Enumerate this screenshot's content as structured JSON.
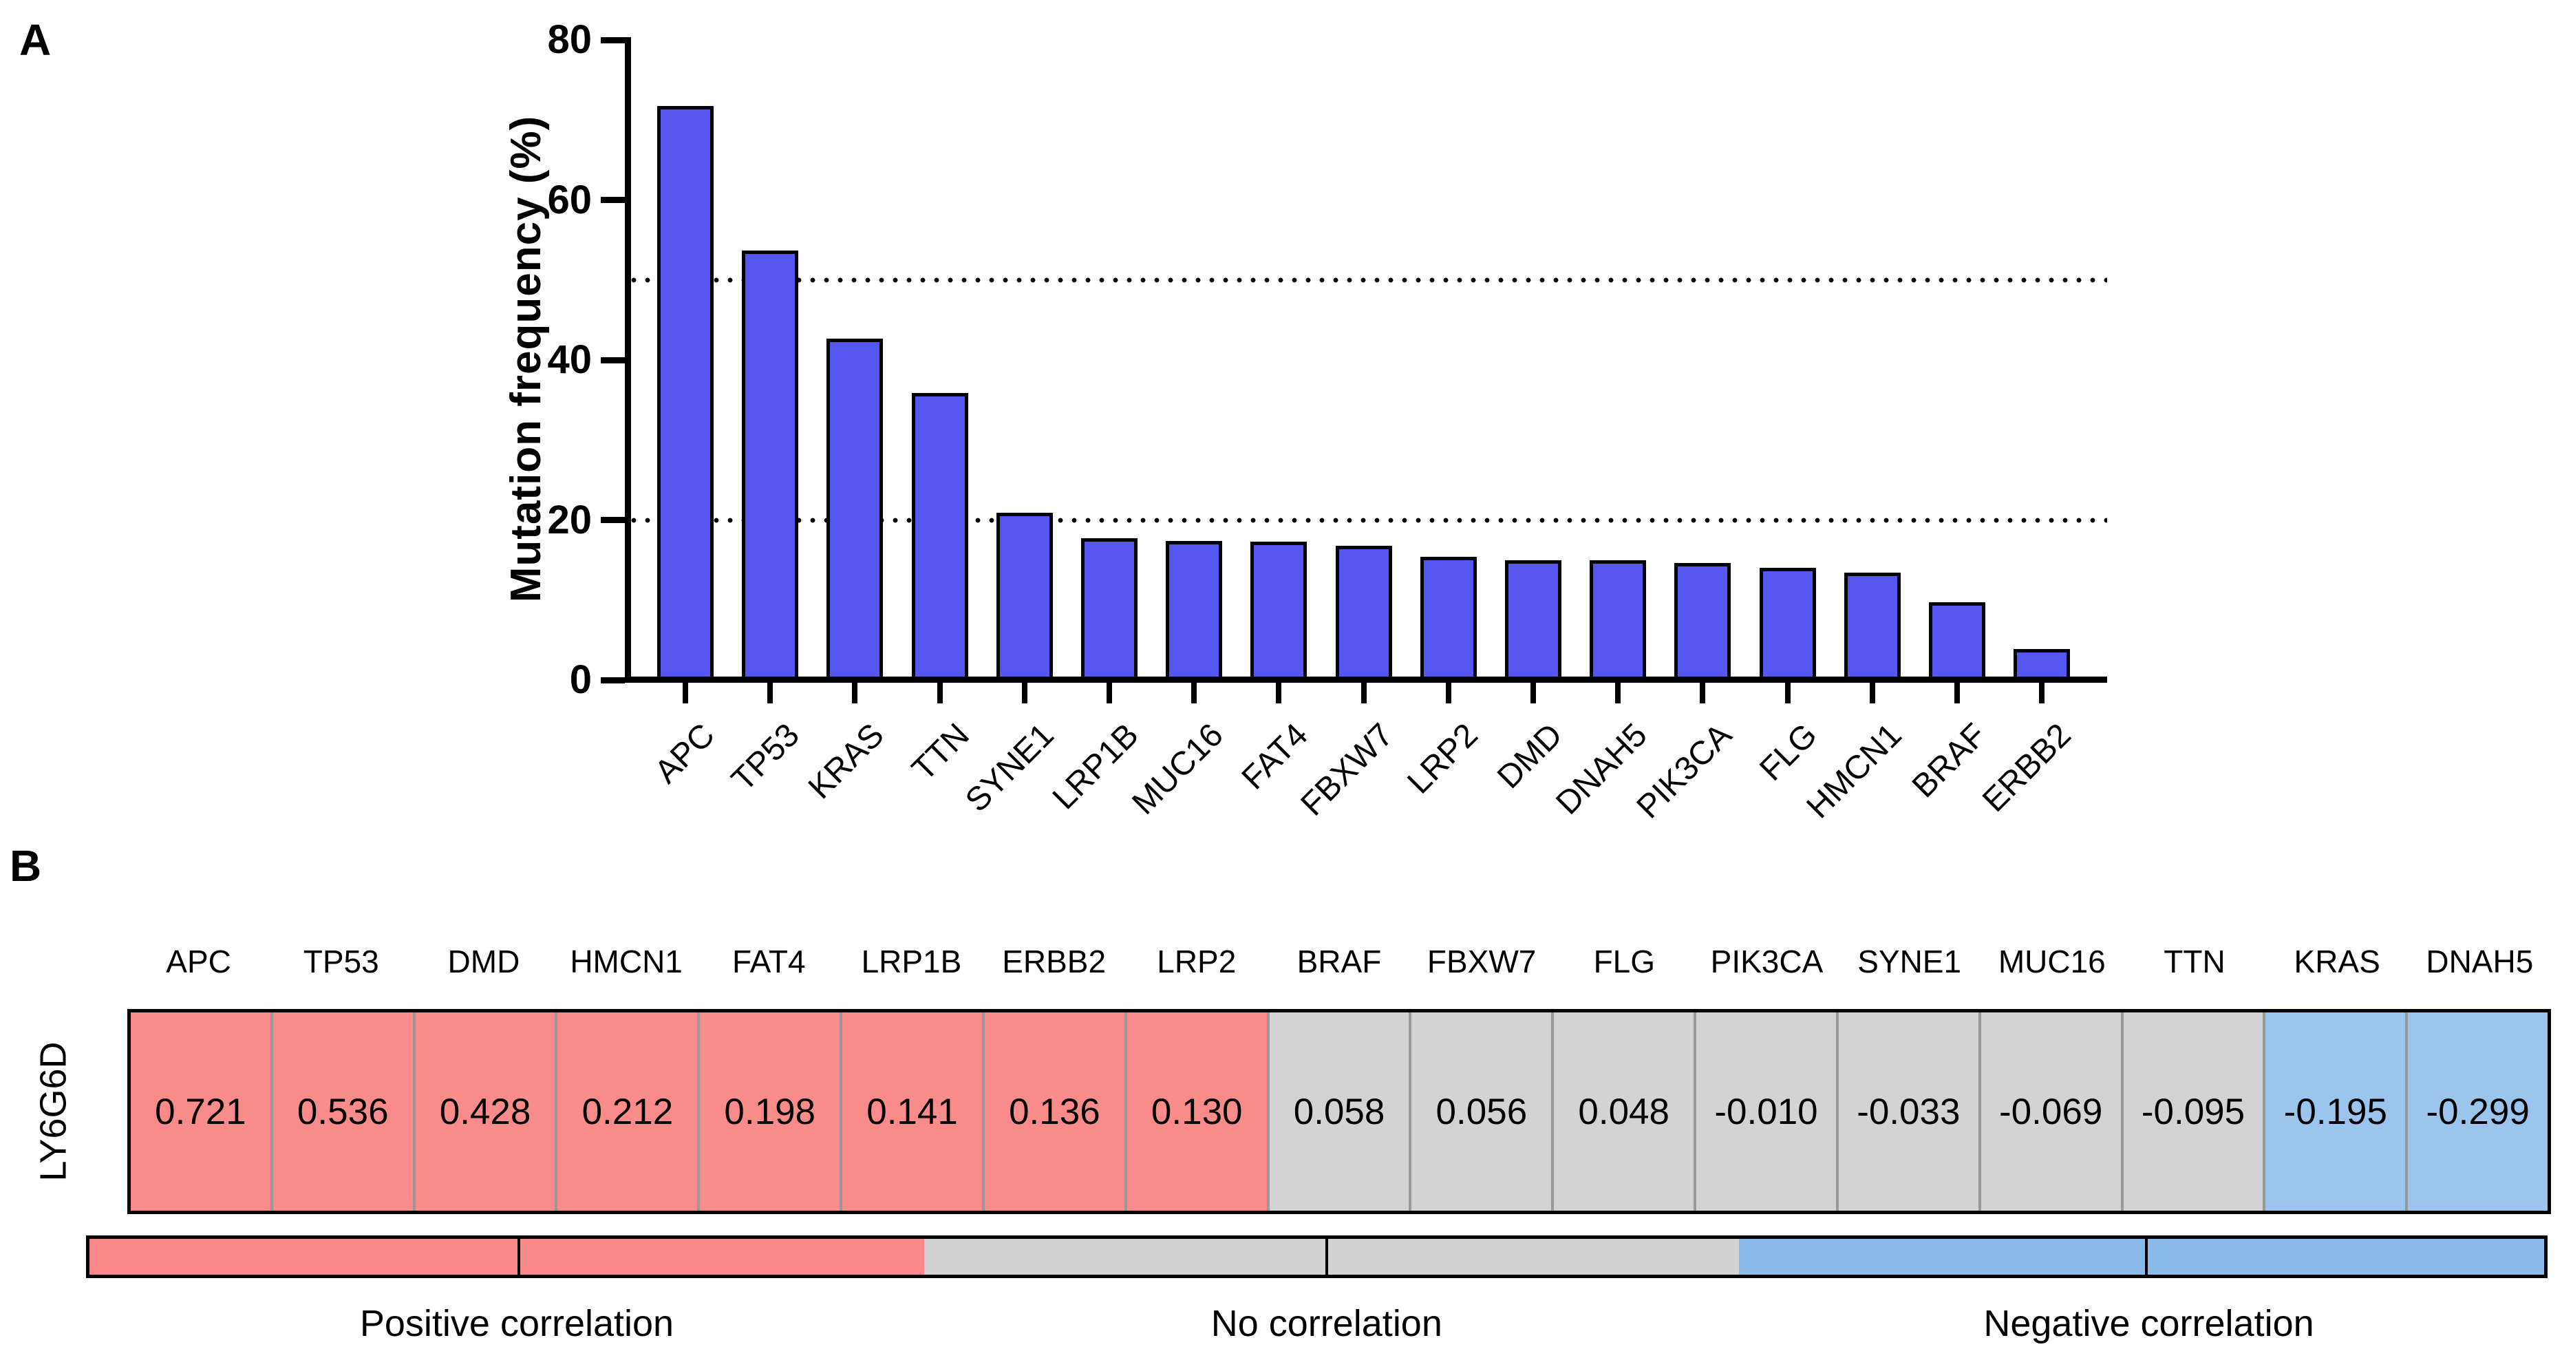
{
  "panels": {
    "a": {
      "label": "A",
      "chart_data": {
        "type": "bar",
        "ylabel": "Mutation frequency (%)",
        "xlabel": "",
        "ylim": [
          0,
          80
        ],
        "yticks": [
          0,
          20,
          40,
          60,
          80
        ],
        "reference_lines_dotted": [
          20,
          50
        ],
        "grid": "off",
        "legend": "none",
        "bar_color": "#5555f0",
        "bar_border_color": "#000000",
        "categories": [
          "APC",
          "TP53",
          "KRAS",
          "TTN",
          "SYNE1",
          "LRP1B",
          "MUC16",
          "FAT4",
          "FBXW7",
          "LRP2",
          "DMD",
          "DNAH5",
          "PIK3CA",
          "FLG",
          "HMCN1",
          "BRAF",
          "ERBB2"
        ],
        "values": [
          71.7,
          53.7,
          42.7,
          35.9,
          20.9,
          17.7,
          17.4,
          17.3,
          16.8,
          15.4,
          15.0,
          15.0,
          14.6,
          14.0,
          13.4,
          9.7,
          3.9
        ]
      }
    },
    "b": {
      "label": "B",
      "row_label": "LY6G6D",
      "chart_data": {
        "type": "heatmap",
        "row": "LY6G6D",
        "columns": [
          "APC",
          "TP53",
          "DMD",
          "HMCN1",
          "FAT4",
          "LRP1B",
          "ERBB2",
          "LRP2",
          "BRAF",
          "FBXW7",
          "FLG",
          "PIK3CA",
          "SYNE1",
          "MUC16",
          "TTN",
          "KRAS",
          "DNAH5"
        ],
        "values": [
          "0.721",
          "0.536",
          "0.428",
          "0.212",
          "0.198",
          "0.141",
          "0.136",
          "0.130",
          "0.058",
          "0.056",
          "0.048",
          "-0.010",
          "-0.033",
          "-0.069",
          "-0.095",
          "-0.195",
          "-0.299"
        ],
        "groups": [
          "positive",
          "positive",
          "positive",
          "positive",
          "positive",
          "positive",
          "positive",
          "positive",
          "none",
          "none",
          "none",
          "none",
          "none",
          "none",
          "none",
          "negative",
          "negative"
        ],
        "group_colors": {
          "positive": "#f98b8b",
          "none": "#d3d3d3",
          "negative": "#9cc5ee"
        }
      },
      "legend": {
        "segments": [
          {
            "label": "Positive correlation",
            "color": "#f98888",
            "width_pct": 34.0
          },
          {
            "label": "No correlation",
            "color": "#d2d2d2",
            "width_pct": 33.2
          },
          {
            "label": "Negative correlation",
            "color": "#8abae8",
            "width_pct": 32.8
          }
        ],
        "tick_positions_pct": [
          17.5,
          50.4,
          83.8
        ]
      }
    }
  }
}
